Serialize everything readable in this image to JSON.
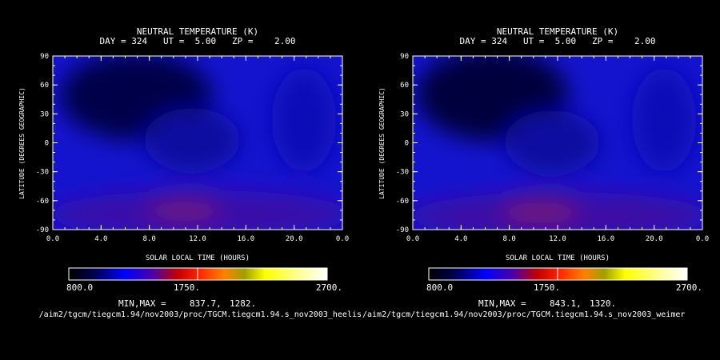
{
  "colors": {
    "background": "#000000",
    "text": "#ffffff",
    "colorbar_stops": [
      "#000000",
      "#0000ff",
      "#ff0000",
      "#ffa500",
      "#ffff00",
      "#ffffff"
    ]
  },
  "chart_data": [
    {
      "type": "heatmap",
      "title": "NEUTRAL TEMPERATURE (K)",
      "subtitle": "DAY = 324   UT =  5.00   ZP =    2.00",
      "xlabel": "SOLAR LOCAL TIME (HOURS)",
      "ylabel": "LATITUDE (DEGREES GEOGRAPHIC)",
      "x_tick_labels": [
        "0.0",
        "4.0",
        "8.0",
        "12.0",
        "16.0",
        "20.0",
        "0.0"
      ],
      "y_tick_labels": [
        "90",
        "60",
        "30",
        "0",
        "-30",
        "-60",
        "-90"
      ],
      "xlim": [
        0,
        24
      ],
      "ylim": [
        -90,
        90
      ],
      "colorbar": {
        "min_label": "800.0",
        "mid_label": "1750.",
        "max_label": "2700.",
        "range": [
          800,
          2700
        ]
      },
      "minmax_label": "MIN,MAX =",
      "min_value": "837.7,",
      "max_value": "1282.",
      "source_file": "/aim2/tgcm/tiegcm1.94/nov2003/proc/TGCM.tiegcm1.94.s_nov2003_heelis",
      "grid": false
    },
    {
      "type": "heatmap",
      "title": "NEUTRAL TEMPERATURE (K)",
      "subtitle": "DAY = 324   UT =  5.00   ZP =    2.00",
      "xlabel": "SOLAR LOCAL TIME (HOURS)",
      "ylabel": "LATITUDE (DEGREES GEOGRAPHIC)",
      "x_tick_labels": [
        "0.0",
        "4.0",
        "8.0",
        "12.0",
        "16.0",
        "20.0",
        "0.0"
      ],
      "y_tick_labels": [
        "90",
        "60",
        "30",
        "0",
        "-30",
        "-60",
        "-90"
      ],
      "xlim": [
        0,
        24
      ],
      "ylim": [
        -90,
        90
      ],
      "colorbar": {
        "min_label": "800.0",
        "mid_label": "1750.",
        "max_label": "2700.",
        "range": [
          800,
          2700
        ]
      },
      "minmax_label": "MIN,MAX =",
      "min_value": "843.1,",
      "max_value": "1320.",
      "source_file": "/aim2/tgcm/tiegcm1.94/nov2003/proc/TGCM.tiegcm1.94.s_nov2003_weimer",
      "grid": false
    }
  ]
}
